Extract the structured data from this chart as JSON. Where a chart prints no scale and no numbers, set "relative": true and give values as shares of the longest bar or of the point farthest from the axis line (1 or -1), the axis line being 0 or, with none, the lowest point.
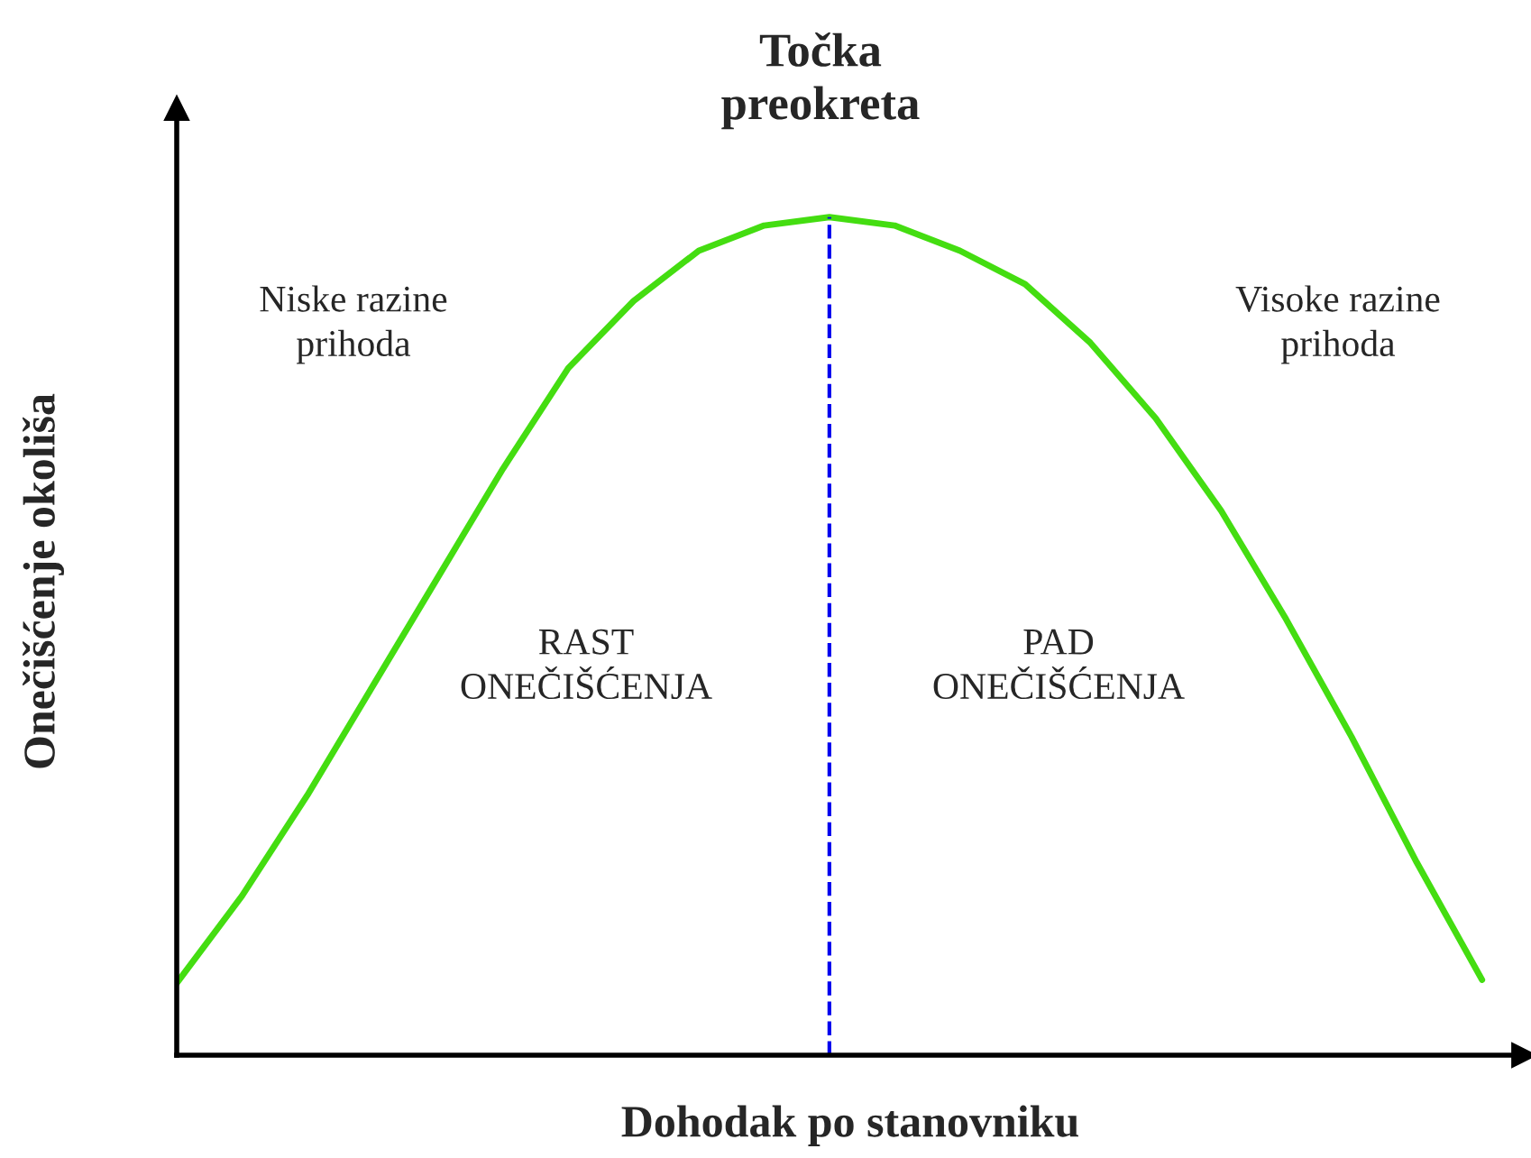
{
  "chart_data": {
    "type": "line",
    "relative": true,
    "title": "Točka\npreokreta",
    "xlabel": "Dohodak po stanovniku",
    "ylabel": "Onečišćenje okoliša",
    "categories": [
      null,
      null,
      null,
      null,
      null,
      null,
      null,
      null,
      null,
      null,
      null,
      null,
      null,
      null,
      null,
      null,
      null,
      null,
      null,
      null,
      null
    ],
    "series": [
      {
        "color": "#44dd11",
        "values": [
          0.086,
          0.19,
          0.31,
          0.44,
          0.57,
          0.7,
          0.82,
          0.9,
          0.96,
          0.99,
          1,
          0.99,
          0.96,
          0.92,
          0.85,
          0.76,
          0.65,
          0.52,
          0.38,
          0.23,
          0.09
        ]
      }
    ],
    "annotations": [
      "Niske razine\nprihoda",
      "Visoke razine\nprihoda",
      "RAST\nONEČIŠĆENJA",
      "PAD\nONEČIŠĆENJA"
    ],
    "legend": false,
    "marker": "none",
    "line_style": "solid"
  }
}
